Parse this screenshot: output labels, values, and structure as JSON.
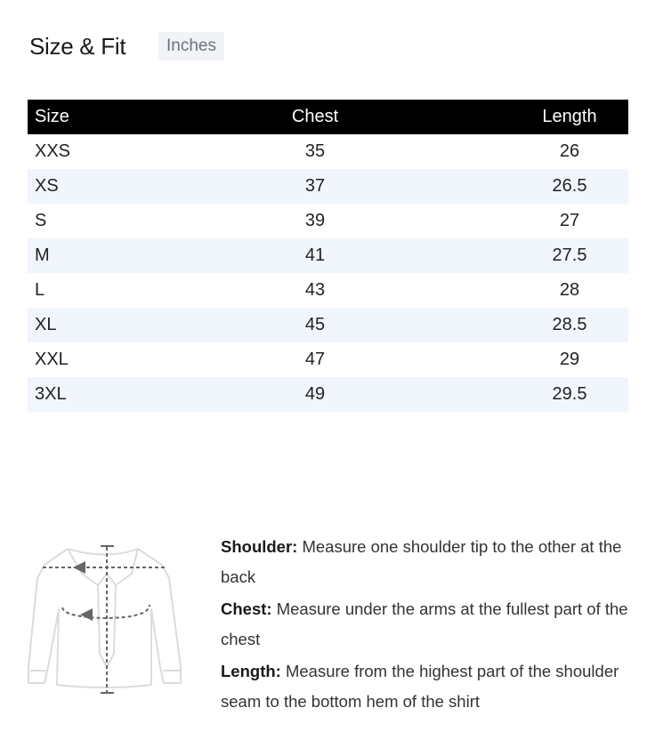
{
  "header": {
    "title": "Size & Fit",
    "unit": "Inches"
  },
  "table": {
    "columns": [
      "Size",
      "Chest",
      "Length"
    ],
    "rows": [
      [
        "XXS",
        "35",
        "26"
      ],
      [
        "XS",
        "37",
        "26.5"
      ],
      [
        "S",
        "39",
        "27"
      ],
      [
        "M",
        "41",
        "27.5"
      ],
      [
        "L",
        "43",
        "28"
      ],
      [
        "XL",
        "45",
        "28.5"
      ],
      [
        "XXL",
        "47",
        "29"
      ],
      [
        "3XL",
        "49",
        "29.5"
      ]
    ]
  },
  "guide": {
    "image_icon": "shirt-measurement-diagram",
    "items": [
      {
        "label": "Shoulder:",
        "text": " Measure one shoulder tip to the other at the back"
      },
      {
        "label": "Chest:",
        "text": " Measure under the arms at the fullest part of the chest"
      },
      {
        "label": "Length:",
        "text": " Measure from the highest part of the shoulder seam to the bottom hem of the shirt"
      }
    ]
  }
}
